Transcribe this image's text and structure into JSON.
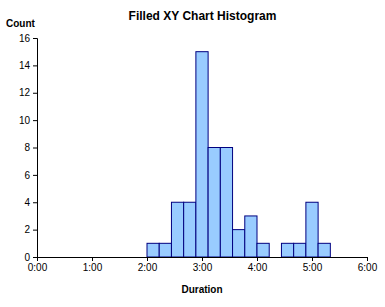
{
  "chart_data": {
    "type": "histogram",
    "title": "Filled XY Chart Histogram",
    "x_label": "Duration",
    "y_label": "Count",
    "bins": [
      120,
      133.33,
      146.67,
      160,
      173.33,
      186.67,
      200,
      213.33,
      226.67,
      240,
      253.33,
      266.67,
      280,
      293.33,
      306.67,
      320
    ],
    "values": [
      1,
      1,
      4,
      4,
      15,
      8,
      8,
      2,
      3,
      1,
      0,
      1,
      1,
      4,
      1
    ],
    "color": "#99ccff",
    "xlim": [
      0,
      360
    ],
    "xticks": [
      {
        "value": 0,
        "label": "0:00"
      },
      {
        "value": 60,
        "label": "1:00"
      },
      {
        "value": 120,
        "label": "2:00"
      },
      {
        "value": 180,
        "label": "3:00"
      },
      {
        "value": 240,
        "label": "4:00"
      },
      {
        "value": 300,
        "label": "5:00"
      },
      {
        "value": 360,
        "label": "6:00"
      }
    ],
    "ylim": [
      0,
      16
    ],
    "yticks": [
      0,
      2,
      4,
      6,
      8,
      10,
      12,
      14,
      16
    ],
    "grid": false
  }
}
